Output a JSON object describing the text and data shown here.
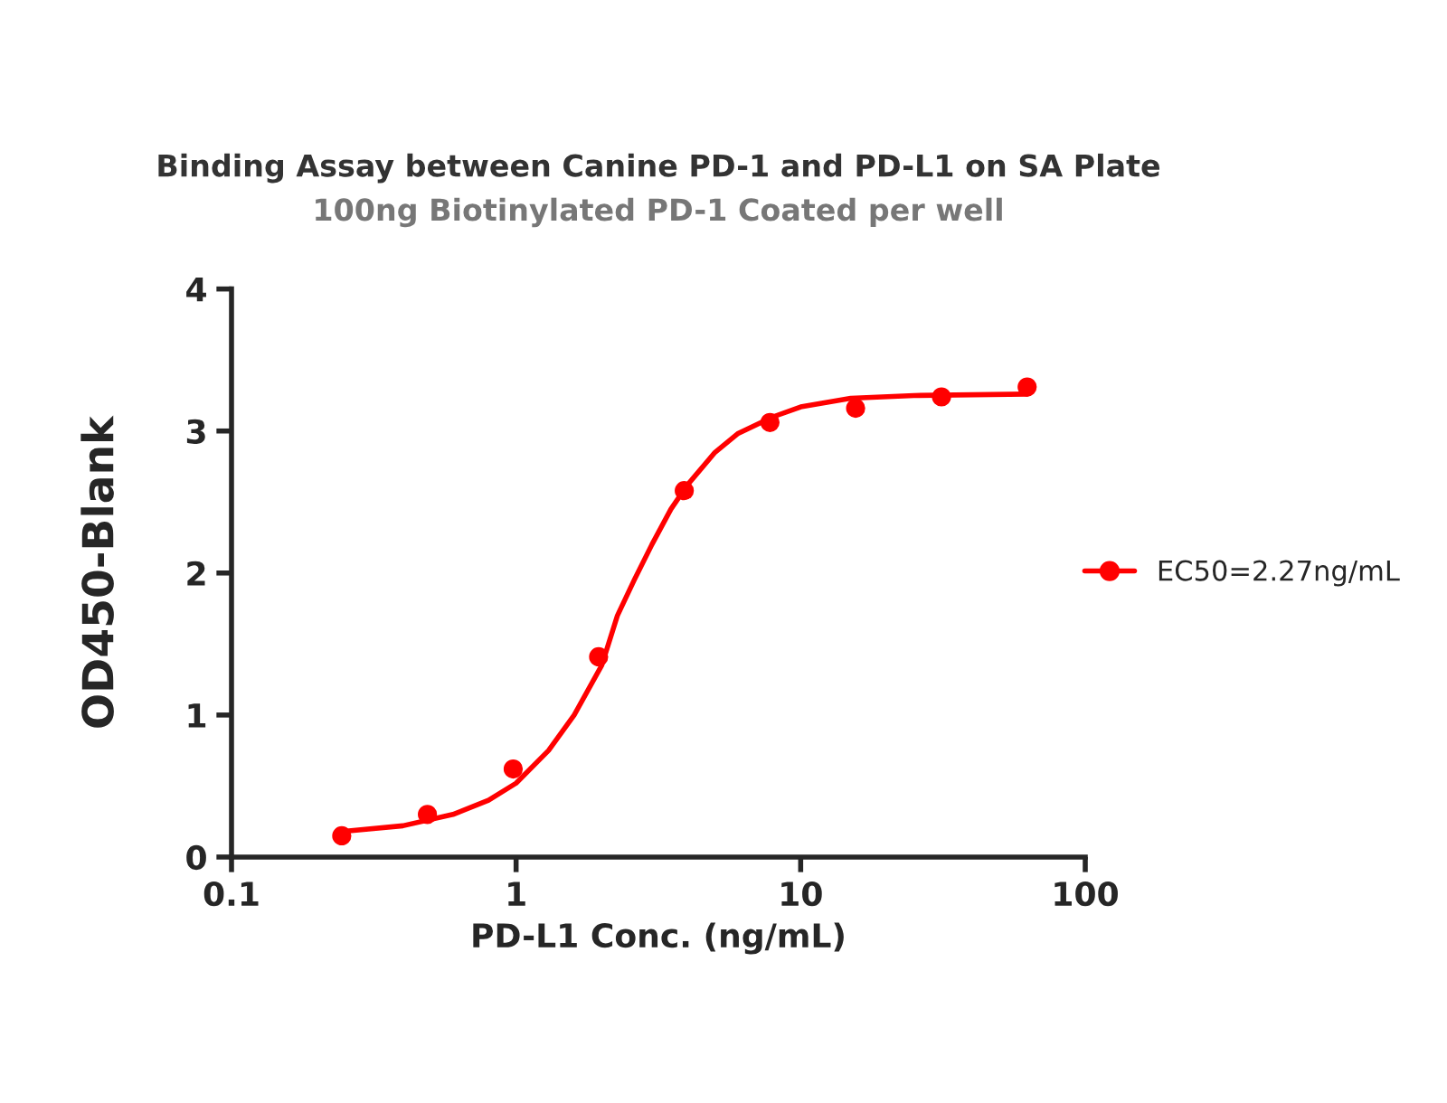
{
  "chart_data": {
    "type": "line",
    "title": "Binding Assay between Canine PD-1 and PD-L1 on SA Plate",
    "subtitle": "100ng Biotinylated PD-1 Coated per well",
    "xlabel": "PD-L1 Conc. (ng/mL)",
    "ylabel": "OD450-Blank",
    "log": "x",
    "xlim": [
      0.1,
      100
    ],
    "xticks": [
      0.1,
      1,
      10,
      100
    ],
    "ylim": [
      0,
      4
    ],
    "yticks": [
      0,
      1,
      2,
      3,
      4
    ],
    "grid": false,
    "legend": "right",
    "series": [
      {
        "type": "scatter",
        "marker": "circle",
        "name": "EC50=2.27ng/mL",
        "color": "#ff0000",
        "x": [
          0.244,
          0.488,
          0.977,
          1.95,
          3.9,
          7.8,
          15.6,
          31.25,
          62.5
        ],
        "values": [
          0.15,
          0.3,
          0.62,
          1.41,
          2.58,
          3.06,
          3.16,
          3.24,
          3.31
        ]
      },
      {
        "color": "#ff0000",
        "x": [
          0.244,
          0.4,
          0.6,
          0.8,
          1.0,
          1.3,
          1.6,
          2.0,
          2.27,
          2.6,
          3.0,
          3.5,
          4,
          5,
          6,
          8,
          10,
          15,
          25,
          62.5
        ],
        "values": [
          0.18,
          0.22,
          0.3,
          0.4,
          0.52,
          0.75,
          1.0,
          1.35,
          1.7,
          1.95,
          2.2,
          2.45,
          2.62,
          2.85,
          2.98,
          3.1,
          3.17,
          3.23,
          3.25,
          3.26
        ]
      }
    ]
  }
}
